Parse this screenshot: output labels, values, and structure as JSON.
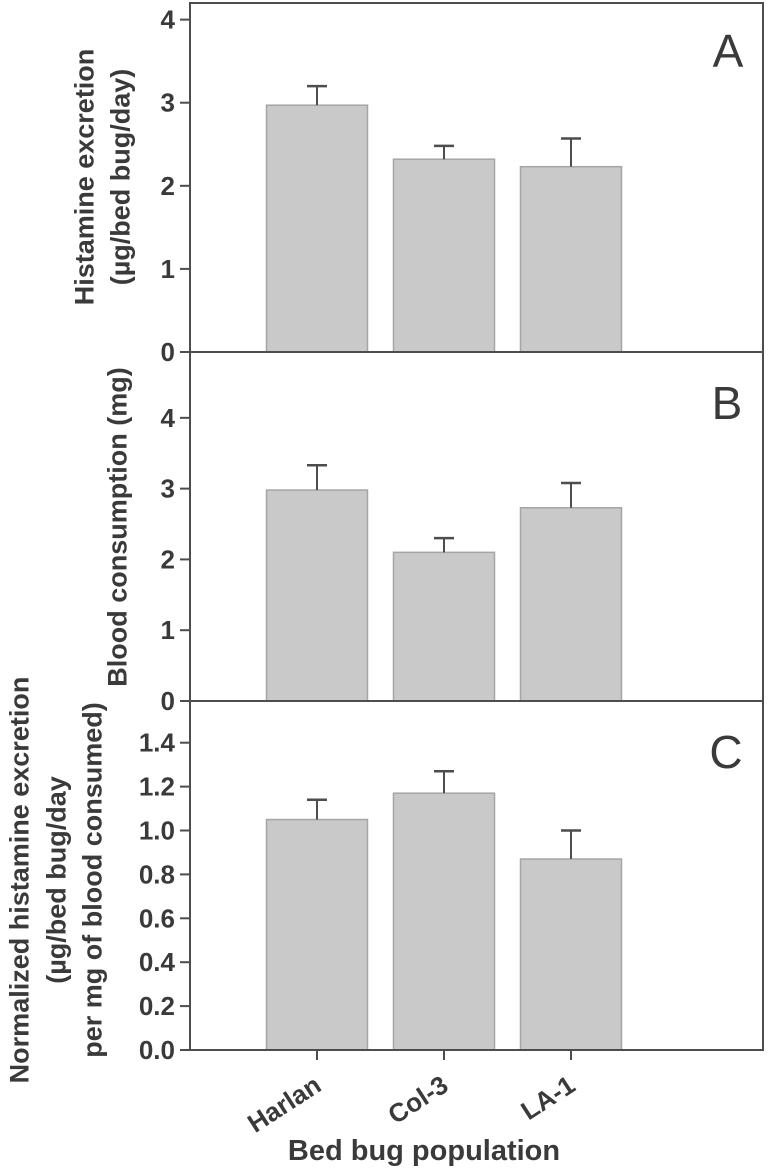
{
  "figure": {
    "x_axis_title": "Bed bug population",
    "categories": [
      "Harlan",
      "Col-3",
      "LA-1"
    ],
    "colors": {
      "background": "#ffffff",
      "bar_fill": "#c9c9c9",
      "bar_stroke": "#a5a5a5",
      "axis": "#4d4d4d",
      "text": "#3a3a3a"
    }
  },
  "chart_data": [
    {
      "type": "bar",
      "panel": "A",
      "title": "",
      "ylabel_lines": [
        "Histamine excretion",
        "(µg/bed bug/day)"
      ],
      "xlabel": "Bed bug population",
      "categories": [
        "Harlan",
        "Col-3",
        "LA-1"
      ],
      "values": [
        2.97,
        2.32,
        2.23
      ],
      "error_upper": [
        0.23,
        0.16,
        0.34
      ],
      "ytick_labels": [
        "0",
        "1",
        "2",
        "3",
        "4"
      ],
      "ylim": [
        0,
        4.2
      ],
      "grid": false,
      "legend": "none"
    },
    {
      "type": "bar",
      "panel": "B",
      "title": "",
      "ylabel_lines": [
        "Blood consumption (mg)"
      ],
      "xlabel": "Bed bug population",
      "categories": [
        "Harlan",
        "Col-3",
        "LA-1"
      ],
      "values": [
        2.98,
        2.1,
        2.73
      ],
      "error_upper": [
        0.35,
        0.2,
        0.35
      ],
      "ytick_labels": [
        "0",
        "1",
        "2",
        "3",
        "4"
      ],
      "ylim": [
        0,
        4.93
      ],
      "grid": false,
      "legend": "none"
    },
    {
      "type": "bar",
      "panel": "C",
      "title": "",
      "ylabel_lines": [
        "Normalized histamine excretion",
        "(µg/bed bug/day",
        "per mg of blood consumed)"
      ],
      "xlabel": "Bed bug population",
      "categories": [
        "Harlan",
        "Col-3",
        "LA-1"
      ],
      "values": [
        1.05,
        1.17,
        0.87
      ],
      "error_upper": [
        0.09,
        0.1,
        0.13
      ],
      "ytick_labels": [
        "0.0",
        "0.2",
        "0.4",
        "0.6",
        "0.8",
        "1.0",
        "1.2",
        "1.4"
      ],
      "ylim": [
        0,
        1.59
      ],
      "grid": false,
      "legend": "none"
    }
  ]
}
